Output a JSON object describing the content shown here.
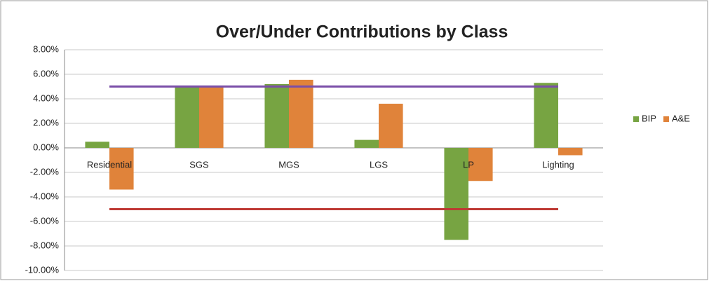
{
  "chart_data": {
    "type": "bar",
    "title": "Over/Under Contributions by Class",
    "categories": [
      "Residential",
      "SGS",
      "MGS",
      "LGS",
      "LP",
      "Lighting"
    ],
    "series": [
      {
        "name": "BIP",
        "color": "#77a442",
        "values": [
          0.5,
          5.0,
          5.2,
          0.65,
          -7.5,
          5.3
        ]
      },
      {
        "name": "A&E",
        "color": "#e0833a",
        "values": [
          -3.4,
          5.0,
          5.55,
          3.6,
          -2.7,
          -0.6
        ]
      }
    ],
    "reference_lines": [
      {
        "value": 5,
        "color": "#7a4ea8"
      },
      {
        "value": -5,
        "color": "#be3a34"
      }
    ],
    "ylim": [
      -10,
      8
    ],
    "yticks": [
      {
        "value": -10,
        "label": "-10.00%"
      },
      {
        "value": -8,
        "label": "-8.00%"
      },
      {
        "value": -6,
        "label": "-6.00%"
      },
      {
        "value": -4,
        "label": "-4.00%"
      },
      {
        "value": -2,
        "label": "-2.00%"
      },
      {
        "value": 0,
        "label": "0.00%"
      },
      {
        "value": 2,
        "label": "2.00%"
      },
      {
        "value": 4,
        "label": "4.00%"
      },
      {
        "value": 6,
        "label": "6.00%"
      },
      {
        "value": 8,
        "label": "8.00%"
      }
    ],
    "grid": true,
    "legend": "right"
  }
}
